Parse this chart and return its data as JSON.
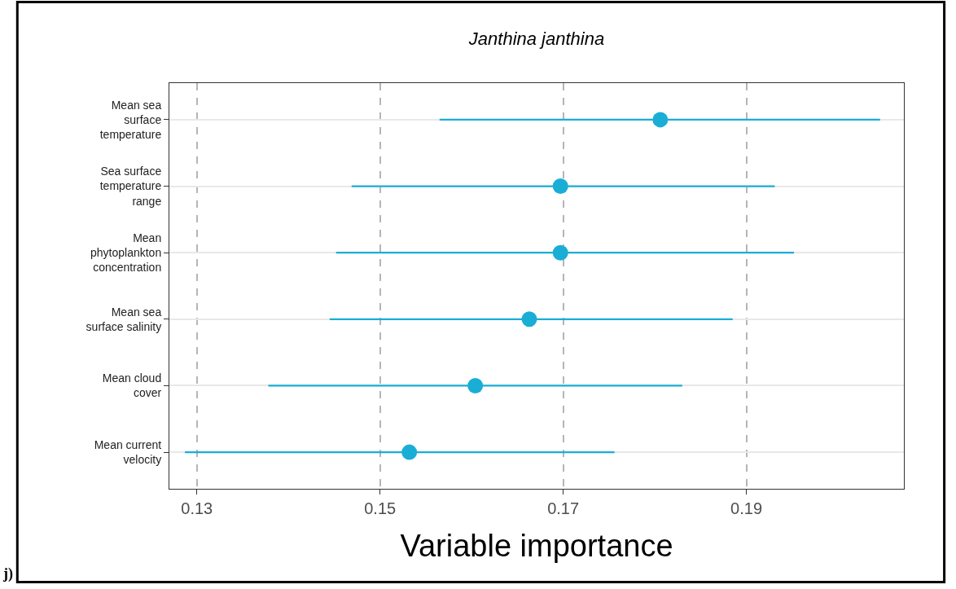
{
  "chart_data": {
    "type": "scatter",
    "orientation": "horizontal",
    "title": "Janthina janthina",
    "xlabel": "Variable importance",
    "categories": [
      "Mean sea\nsurface\ntemperature",
      "Sea surface\ntemperature\nrange",
      "Mean\nphytoplankton\nconcentration",
      "Mean sea\nsurface salinity",
      "Mean cloud\ncover",
      "Mean current\nvelocity"
    ],
    "series": [
      {
        "color": "#1aaed6",
        "values": [
          0.1806,
          0.1697,
          0.1697,
          0.1663,
          0.1604,
          0.1532
        ],
        "errors": [
          [
            0.1565,
            0.2046
          ],
          [
            0.1469,
            0.1931
          ],
          [
            0.1452,
            0.1952
          ],
          [
            0.1445,
            0.1885
          ],
          [
            0.1378,
            0.183
          ],
          [
            0.1287,
            0.1756
          ]
        ]
      }
    ],
    "xlim": [
      0.127,
      0.2072
    ],
    "xticks": [
      0.13,
      0.15,
      0.17,
      0.19
    ],
    "grid": true,
    "marker": "circle",
    "line_style": "solid",
    "annotations": [
      "j)"
    ]
  }
}
